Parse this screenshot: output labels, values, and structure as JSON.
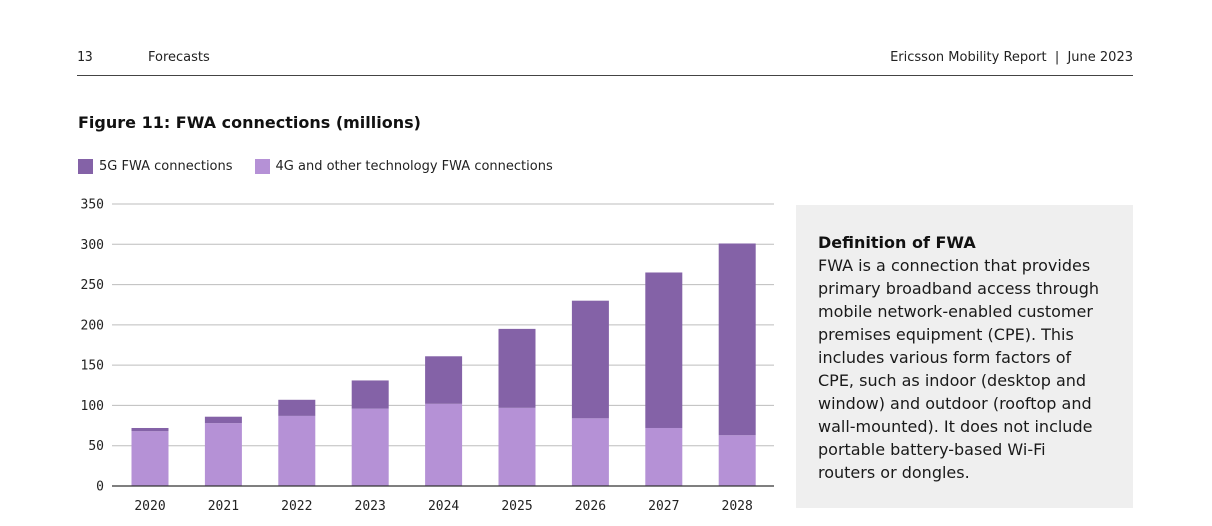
{
  "header": {
    "page_number": "13",
    "section": "Forecasts",
    "report_title": "Ericsson Mobility Report  |  June 2023"
  },
  "figure": {
    "title": "Figure 11: FWA connections (millions)"
  },
  "legend": [
    {
      "label": "5G FWA connections",
      "color": "#8462a7"
    },
    {
      "label": "4G and other technology FWA connections",
      "color": "#b591d6"
    }
  ],
  "chart_data": {
    "type": "bar",
    "stacked": true,
    "title": "Figure 11: FWA connections (millions)",
    "categories": [
      "2020",
      "2021",
      "2022",
      "2023",
      "2024",
      "2025",
      "2026",
      "2027",
      "2028"
    ],
    "series": [
      {
        "name": "4G and other technology FWA connections",
        "color": "#b591d6",
        "values": [
          68,
          78,
          87,
          96,
          102,
          97,
          84,
          72,
          63
        ]
      },
      {
        "name": "5G FWA connections",
        "color": "#8462a7",
        "values": [
          4,
          8,
          20,
          35,
          59,
          98,
          146,
          193,
          238
        ]
      }
    ],
    "ylim": [
      0,
      350
    ],
    "yticks": [
      0,
      50,
      100,
      150,
      200,
      250,
      300,
      350
    ],
    "grid": true,
    "legend_position": "top-left"
  },
  "definition": {
    "title": "Definition of FWA",
    "lines": [
      "FWA is a connection that provides",
      "primary broadband access through",
      "mobile network-enabled customer",
      "premises equipment (CPE). This",
      "includes various form factors of",
      "CPE, such as indoor (desktop and",
      "window) and outdoor (rooftop and",
      "wall-mounted). It does not include",
      "portable battery-based Wi-Fi",
      "routers or dongles."
    ]
  }
}
